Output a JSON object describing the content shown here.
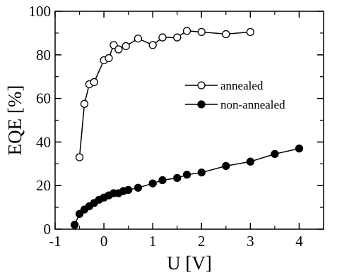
{
  "chart_data": {
    "type": "line",
    "xlabel": "U [V]",
    "ylabel": "EQE [%]",
    "xlim": [
      -1,
      4.5
    ],
    "ylim": [
      0,
      100
    ],
    "x_ticks": [
      -1,
      0,
      1,
      2,
      3,
      4
    ],
    "x_tick_labels": [
      "-1",
      "0",
      "1",
      "2",
      "3",
      "4"
    ],
    "y_ticks": [
      0,
      20,
      40,
      60,
      80,
      100
    ],
    "y_tick_labels": [
      "0",
      "20",
      "40",
      "60",
      "80",
      "100"
    ],
    "grid": false,
    "legend_position": "center-right",
    "series": [
      {
        "name": "annealed",
        "marker": "open-circle",
        "color": "#000000",
        "x": [
          -0.5,
          -0.4,
          -0.3,
          -0.2,
          0.0,
          0.1,
          0.2,
          0.3,
          0.45,
          0.7,
          1.0,
          1.2,
          1.5,
          1.7,
          2.0,
          2.5,
          3.0
        ],
        "y": [
          33,
          57.5,
          66.5,
          67.5,
          77.5,
          78.5,
          84.5,
          82.5,
          84,
          87.5,
          84.5,
          88,
          88,
          91,
          90.5,
          89.5,
          90.5
        ]
      },
      {
        "name": "non-annealed",
        "marker": "filled-circle",
        "color": "#000000",
        "x": [
          -0.6,
          -0.5,
          -0.4,
          -0.3,
          -0.2,
          -0.1,
          0.0,
          0.1,
          0.2,
          0.3,
          0.4,
          0.5,
          0.7,
          1.0,
          1.2,
          1.5,
          1.7,
          2.0,
          2.5,
          3.0,
          3.5,
          4.0
        ],
        "y": [
          2,
          7,
          9,
          10.5,
          12,
          13.5,
          14.5,
          15.5,
          16.5,
          16.5,
          17.5,
          18,
          19,
          21,
          22.5,
          23.5,
          25,
          26,
          29,
          31,
          34.5,
          37
        ]
      }
    ]
  }
}
